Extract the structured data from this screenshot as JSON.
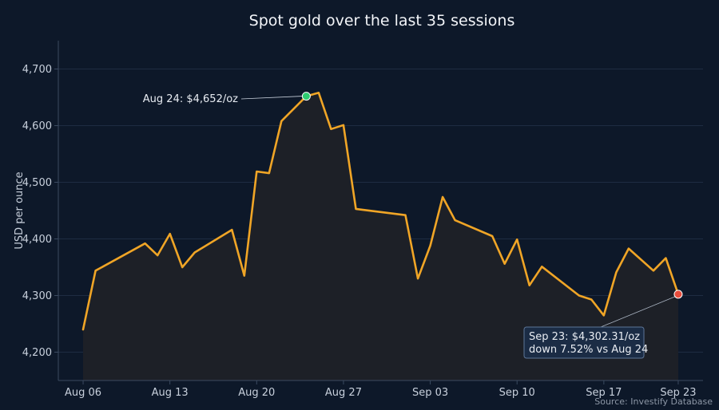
{
  "chart_data": {
    "type": "area",
    "title": "Spot gold over the last 35 sessions",
    "ylabel": "USD per ounce",
    "xlabel": "",
    "ylim": [
      4150,
      4750
    ],
    "yticks": [
      4200,
      4300,
      4400,
      4500,
      4600,
      4700
    ],
    "ytick_labels": [
      "4,200",
      "4,300",
      "4,400",
      "4,500",
      "4,600",
      "4,700"
    ],
    "xlim": [
      "2025-08-04",
      "2025-09-25"
    ],
    "xticks": [
      "2025-08-06",
      "2025-08-13",
      "2025-08-20",
      "2025-08-27",
      "2025-09-03",
      "2025-09-10",
      "2025-09-17",
      "2025-09-23"
    ],
    "xtick_labels": [
      "Aug 06",
      "Aug 13",
      "Aug 20",
      "Aug 27",
      "Sep 03",
      "Sep 10",
      "Sep 17",
      "Sep 23"
    ],
    "grid": true,
    "series": [
      {
        "x": [
          "2025-08-06",
          "2025-08-07",
          "2025-08-11",
          "2025-08-12",
          "2025-08-13",
          "2025-08-14",
          "2025-08-15",
          "2025-08-18",
          "2025-08-19",
          "2025-08-20",
          "2025-08-21",
          "2025-08-22",
          "2025-08-24",
          "2025-08-25",
          "2025-08-26",
          "2025-08-27",
          "2025-08-28",
          "2025-09-01",
          "2025-09-02",
          "2025-09-03",
          "2025-09-04",
          "2025-09-05",
          "2025-09-08",
          "2025-09-09",
          "2025-09-10",
          "2025-09-11",
          "2025-09-12",
          "2025-09-15",
          "2025-09-16",
          "2025-09-17",
          "2025-09-18",
          "2025-09-19",
          "2025-09-21",
          "2025-09-22",
          "2025-09-23"
        ],
        "values": [
          4240,
          4344,
          4392,
          4371,
          4409,
          4350,
          4376,
          4416,
          4335,
          4519,
          4516,
          4608,
          4652,
          4658,
          4594,
          4601,
          4453,
          4442,
          4330,
          4388,
          4474,
          4433,
          4405,
          4356,
          4399,
          4318,
          4351,
          4300,
          4293,
          4265,
          4341,
          4383,
          4344,
          4366,
          4302.31
        ]
      }
    ],
    "colors": {
      "line": "#f0a526",
      "fill": "#1d2027",
      "background": "#0d1829",
      "peak": "#2ecc71",
      "last": "#e74c3c"
    },
    "annotations": [
      {
        "text": "Aug 24: $4,652/oz",
        "x": "2025-08-24",
        "y": 4652
      },
      {
        "line1": "Sep 23: $4,302.31/oz",
        "line2": "down 7.52% vs Aug 24",
        "x": "2025-09-23",
        "y": 4302.31
      }
    ],
    "source": "Source: Investify Database"
  }
}
